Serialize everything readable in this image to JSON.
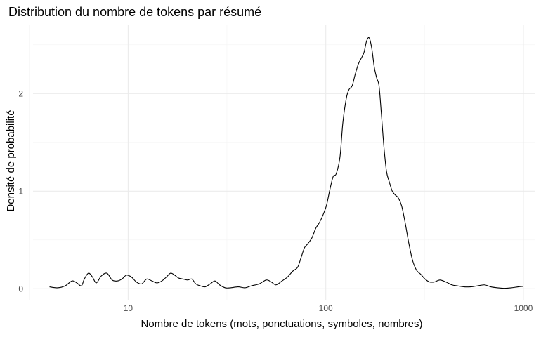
{
  "chart_data": {
    "type": "line",
    "title": "Distribution du nombre de tokens par résumé",
    "xlabel": "Nombre de tokens (mots, ponctuations, symboles, nombres)",
    "ylabel": "Densité de probabilité",
    "x_scale": "log10",
    "xlim": [
      3.3,
      1150
    ],
    "ylim": [
      -0.12,
      2.7
    ],
    "x_ticks": [
      10,
      100,
      1000
    ],
    "x_tick_labels": [
      "10",
      "100",
      "1000"
    ],
    "x_minor_ticks": [
      3.16,
      31.6,
      316
    ],
    "y_ticks": [
      0,
      1,
      2
    ],
    "y_tick_labels": [
      "0",
      "1",
      "2"
    ],
    "y_minor_ticks": [
      0.5,
      1.5,
      2.5
    ],
    "grid": true,
    "legend": "none",
    "colors": {
      "line": "#000000",
      "grid_major": "#ebebeb",
      "grid_minor": "#f3f3f3",
      "background": "#ffffff"
    },
    "series": [
      {
        "x": [
          4,
          4.4,
          4.8,
          5.2,
          5.5,
          5.8,
          6.0,
          6.3,
          6.6,
          6.9,
          7.3,
          7.8,
          8.3,
          8.8,
          9.3,
          9.8,
          10.4,
          11.0,
          11.7,
          12.4,
          13.2,
          14.0,
          14.8,
          15.6,
          16.4,
          17.2,
          18.0,
          19.0,
          20.0,
          21.0,
          22.0,
          23.2,
          24.5,
          26.0,
          27.5,
          29.0,
          31.0,
          33.0,
          36.0,
          39.0,
          42.0,
          46.0,
          50.0,
          53.0,
          56.0,
          60.0,
          64.0,
          68.0,
          72.0,
          75.0,
          78.0,
          81.0,
          85.0,
          89.0,
          93.0,
          97.0,
          101.0,
          105.0,
          109.0,
          113.0,
          118.0,
          122.0,
          127.0,
          131.0,
          136.0,
          141.0,
          146.0,
          151.0,
          156.0,
          161.0,
          166.0,
          171.0,
          176.0,
          181.0,
          186.0,
          191.0,
          197.0,
          203.0,
          210.0,
          217.0,
          225.0,
          233.0,
          242.0,
          252.0,
          263.0,
          275.0,
          288.0,
          302.0,
          318.0,
          335.0,
          355.0,
          378.0,
          405.0,
          435.0,
          465.0,
          500.0,
          540.0,
          585.0,
          635.0,
          685.0,
          740.0,
          800.0,
          870.0,
          940.0,
          1000.0
        ],
        "y": [
          0.02,
          0.01,
          0.03,
          0.08,
          0.06,
          0.03,
          0.1,
          0.16,
          0.12,
          0.06,
          0.13,
          0.16,
          0.09,
          0.08,
          0.1,
          0.14,
          0.12,
          0.07,
          0.05,
          0.1,
          0.08,
          0.06,
          0.08,
          0.12,
          0.16,
          0.14,
          0.11,
          0.1,
          0.09,
          0.1,
          0.05,
          0.03,
          0.02,
          0.05,
          0.08,
          0.04,
          0.01,
          0.01,
          0.02,
          0.01,
          0.03,
          0.05,
          0.09,
          0.07,
          0.04,
          0.08,
          0.12,
          0.18,
          0.22,
          0.32,
          0.42,
          0.46,
          0.52,
          0.62,
          0.68,
          0.76,
          0.86,
          1.02,
          1.15,
          1.18,
          1.35,
          1.7,
          1.95,
          2.04,
          2.08,
          2.2,
          2.3,
          2.36,
          2.42,
          2.54,
          2.57,
          2.46,
          2.27,
          2.16,
          2.08,
          1.8,
          1.45,
          1.2,
          1.09,
          1.0,
          0.96,
          0.93,
          0.85,
          0.68,
          0.47,
          0.29,
          0.19,
          0.15,
          0.1,
          0.07,
          0.07,
          0.09,
          0.07,
          0.04,
          0.03,
          0.02,
          0.02,
          0.03,
          0.04,
          0.02,
          0.01,
          0.005,
          0.01,
          0.02,
          0.025
        ]
      }
    ]
  }
}
